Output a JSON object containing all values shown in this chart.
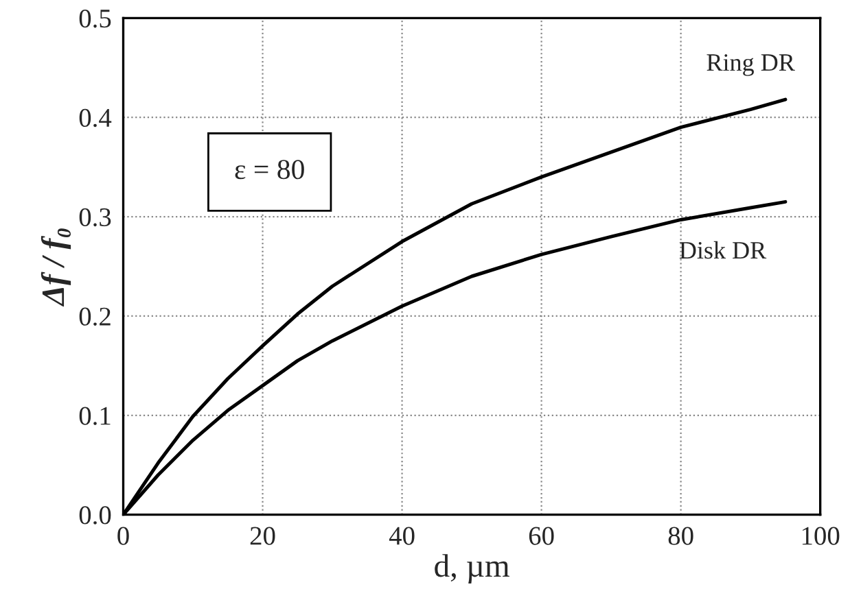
{
  "chart_data": {
    "type": "line",
    "xlabel": "d, µm",
    "ylabel": "Δf / f₀",
    "xlim": [
      0,
      100
    ],
    "xticks": [
      0,
      20,
      40,
      60,
      80,
      100
    ],
    "ylim": [
      0,
      0.5
    ],
    "yticks": [
      {
        "value": 0,
        "label": "0.0"
      },
      0.1,
      0.2,
      0.3,
      0.4,
      0.5
    ],
    "grid": true,
    "legend": false,
    "line_style": "solid",
    "marker": "none",
    "series": [
      {
        "name": "Ring DR",
        "color": "#000000",
        "x": [
          0,
          5,
          10,
          15,
          20,
          25,
          30,
          40,
          50,
          60,
          70,
          80,
          90,
          95
        ],
        "values": [
          0,
          0.052,
          0.099,
          0.137,
          0.17,
          0.202,
          0.23,
          0.275,
          0.313,
          0.34,
          0.365,
          0.39,
          0.408,
          0.418
        ]
      },
      {
        "name": "Disk DR",
        "color": "#000000",
        "x": [
          0,
          5,
          10,
          15,
          20,
          25,
          30,
          40,
          50,
          60,
          70,
          80,
          90,
          95
        ],
        "values": [
          0,
          0.04,
          0.075,
          0.105,
          0.13,
          0.155,
          0.175,
          0.21,
          0.24,
          0.262,
          0.28,
          0.297,
          0.309,
          0.315
        ]
      }
    ],
    "annotations": [
      "ε = 80"
    ]
  }
}
